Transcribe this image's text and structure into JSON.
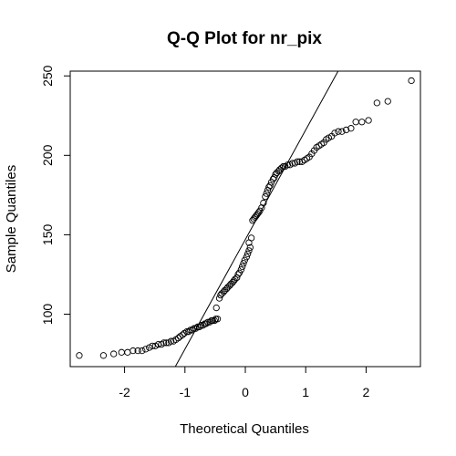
{
  "chart_data": {
    "type": "scatter",
    "title": "Q-Q Plot for nr_pix",
    "xlabel": "Theoretical Quantiles",
    "ylabel": "Sample Quantiles",
    "xlim": [
      -2.9,
      2.9
    ],
    "ylim": [
      67,
      253
    ],
    "x_ticks": [
      -2,
      -1,
      0,
      1,
      2
    ],
    "y_ticks": [
      100,
      150,
      200,
      250
    ],
    "grid": false,
    "legend": "none",
    "reference_line": {
      "intercept": 147.0,
      "slope": 69.0
    },
    "points": [
      {
        "x": -2.75,
        "y": 74
      },
      {
        "x": -2.35,
        "y": 74
      },
      {
        "x": -2.18,
        "y": 75
      },
      {
        "x": -2.05,
        "y": 76
      },
      {
        "x": -1.95,
        "y": 76
      },
      {
        "x": -1.86,
        "y": 77
      },
      {
        "x": -1.78,
        "y": 77
      },
      {
        "x": -1.71,
        "y": 77
      },
      {
        "x": -1.65,
        "y": 78
      },
      {
        "x": -1.59,
        "y": 79
      },
      {
        "x": -1.54,
        "y": 80
      },
      {
        "x": -1.49,
        "y": 80
      },
      {
        "x": -1.44,
        "y": 81
      },
      {
        "x": -1.39,
        "y": 81
      },
      {
        "x": -1.35,
        "y": 82
      },
      {
        "x": -1.31,
        "y": 82
      },
      {
        "x": -1.27,
        "y": 82
      },
      {
        "x": -1.23,
        "y": 83
      },
      {
        "x": -1.19,
        "y": 83
      },
      {
        "x": -1.15,
        "y": 84
      },
      {
        "x": -1.11,
        "y": 85
      },
      {
        "x": -1.08,
        "y": 86
      },
      {
        "x": -1.04,
        "y": 87
      },
      {
        "x": -1.01,
        "y": 88
      },
      {
        "x": -0.97,
        "y": 89
      },
      {
        "x": -0.94,
        "y": 89
      },
      {
        "x": -0.91,
        "y": 90
      },
      {
        "x": -0.88,
        "y": 90
      },
      {
        "x": -0.85,
        "y": 91
      },
      {
        "x": -0.82,
        "y": 91
      },
      {
        "x": -0.79,
        "y": 92
      },
      {
        "x": -0.76,
        "y": 92
      },
      {
        "x": -0.73,
        "y": 93
      },
      {
        "x": -0.7,
        "y": 93
      },
      {
        "x": -0.67,
        "y": 94
      },
      {
        "x": -0.65,
        "y": 94
      },
      {
        "x": -0.62,
        "y": 95
      },
      {
        "x": -0.59,
        "y": 95
      },
      {
        "x": -0.56,
        "y": 96
      },
      {
        "x": -0.54,
        "y": 96
      },
      {
        "x": -0.51,
        "y": 96
      },
      {
        "x": -0.49,
        "y": 97
      },
      {
        "x": -0.46,
        "y": 97
      },
      {
        "x": -0.48,
        "y": 104
      },
      {
        "x": -0.43,
        "y": 110
      },
      {
        "x": -0.41,
        "y": 112
      },
      {
        "x": -0.39,
        "y": 113
      },
      {
        "x": -0.36,
        "y": 114
      },
      {
        "x": -0.34,
        "y": 115
      },
      {
        "x": -0.31,
        "y": 116
      },
      {
        "x": -0.29,
        "y": 117
      },
      {
        "x": -0.26,
        "y": 118
      },
      {
        "x": -0.24,
        "y": 119
      },
      {
        "x": -0.21,
        "y": 120
      },
      {
        "x": -0.19,
        "y": 121
      },
      {
        "x": -0.17,
        "y": 122
      },
      {
        "x": -0.14,
        "y": 123
      },
      {
        "x": -0.12,
        "y": 125
      },
      {
        "x": -0.1,
        "y": 126
      },
      {
        "x": -0.07,
        "y": 128
      },
      {
        "x": -0.05,
        "y": 130
      },
      {
        "x": -0.03,
        "y": 132
      },
      {
        "x": -0.01,
        "y": 134
      },
      {
        "x": 0.02,
        "y": 136
      },
      {
        "x": 0.04,
        "y": 138
      },
      {
        "x": 0.06,
        "y": 140
      },
      {
        "x": 0.08,
        "y": 142
      },
      {
        "x": 0.06,
        "y": 145
      },
      {
        "x": 0.1,
        "y": 148
      },
      {
        "x": 0.12,
        "y": 159
      },
      {
        "x": 0.14,
        "y": 160
      },
      {
        "x": 0.16,
        "y": 161
      },
      {
        "x": 0.18,
        "y": 162
      },
      {
        "x": 0.2,
        "y": 163
      },
      {
        "x": 0.22,
        "y": 164
      },
      {
        "x": 0.24,
        "y": 165
      },
      {
        "x": 0.27,
        "y": 167
      },
      {
        "x": 0.3,
        "y": 170
      },
      {
        "x": 0.33,
        "y": 174
      },
      {
        "x": 0.35,
        "y": 176
      },
      {
        "x": 0.37,
        "y": 178
      },
      {
        "x": 0.39,
        "y": 180
      },
      {
        "x": 0.41,
        "y": 181
      },
      {
        "x": 0.43,
        "y": 183
      },
      {
        "x": 0.46,
        "y": 185
      },
      {
        "x": 0.48,
        "y": 186
      },
      {
        "x": 0.5,
        "y": 188
      },
      {
        "x": 0.52,
        "y": 189
      },
      {
        "x": 0.55,
        "y": 190
      },
      {
        "x": 0.57,
        "y": 191
      },
      {
        "x": 0.6,
        "y": 192
      },
      {
        "x": 0.63,
        "y": 193
      },
      {
        "x": 0.66,
        "y": 193
      },
      {
        "x": 0.7,
        "y": 194
      },
      {
        "x": 0.74,
        "y": 194
      },
      {
        "x": 0.78,
        "y": 195
      },
      {
        "x": 0.82,
        "y": 195
      },
      {
        "x": 0.86,
        "y": 196
      },
      {
        "x": 0.9,
        "y": 196
      },
      {
        "x": 0.94,
        "y": 196
      },
      {
        "x": 0.98,
        "y": 197
      },
      {
        "x": 1.02,
        "y": 198
      },
      {
        "x": 1.06,
        "y": 199
      },
      {
        "x": 1.1,
        "y": 201
      },
      {
        "x": 1.14,
        "y": 203
      },
      {
        "x": 1.18,
        "y": 205
      },
      {
        "x": 1.22,
        "y": 206
      },
      {
        "x": 1.26,
        "y": 207
      },
      {
        "x": 1.3,
        "y": 208
      },
      {
        "x": 1.34,
        "y": 210
      },
      {
        "x": 1.38,
        "y": 211
      },
      {
        "x": 1.43,
        "y": 212
      },
      {
        "x": 1.48,
        "y": 214
      },
      {
        "x": 1.54,
        "y": 215
      },
      {
        "x": 1.6,
        "y": 215
      },
      {
        "x": 1.67,
        "y": 216
      },
      {
        "x": 1.75,
        "y": 217
      },
      {
        "x": 1.83,
        "y": 221
      },
      {
        "x": 1.93,
        "y": 221
      },
      {
        "x": 2.04,
        "y": 222
      },
      {
        "x": 2.18,
        "y": 233
      },
      {
        "x": 2.36,
        "y": 234
      },
      {
        "x": 2.75,
        "y": 247
      }
    ]
  }
}
